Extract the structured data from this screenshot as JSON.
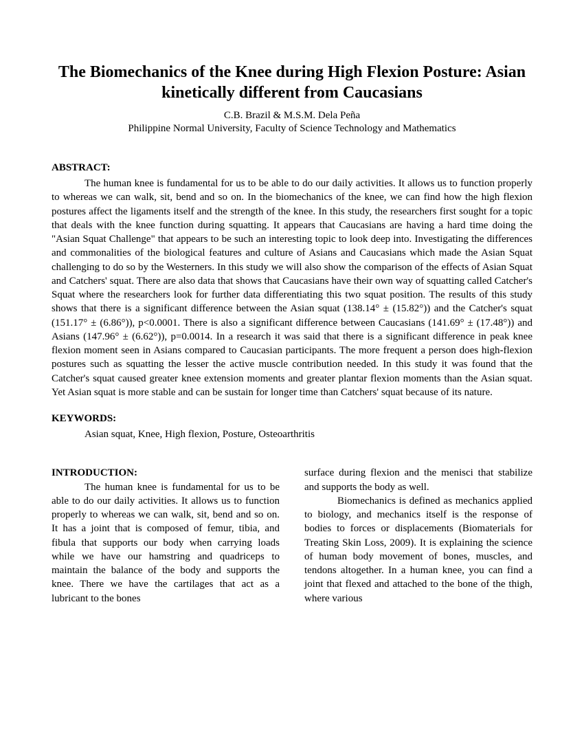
{
  "title_line1": "The Biomechanics of the Knee during High Flexion Posture: Asian",
  "title_line2": "kinetically different from Caucasians",
  "authors": "C.B. Brazil & M.S.M. Dela Peña",
  "affiliation": "Philippine Normal University, Faculty of Science Technology and Mathematics",
  "abstract_heading": "ABSTRACT:",
  "abstract_text": "The human knee is fundamental for us to be able to do our daily activities. It allows us to function properly to whereas we can walk, sit, bend and so on. In the biomechanics of the knee, we can find how the high flexion postures affect the ligaments itself and the strength of the knee. In this study, the researchers first sought for a topic that deals with the knee function during squatting. It appears that Caucasians are having a hard time doing the \"Asian Squat Challenge\" that appears to be such an interesting topic to look deep into. Investigating the differences and commonalities of the biological features and culture of Asians and Caucasians which made the Asian Squat challenging to do so by the Westerners. In this study we will also show the comparison of the effects of Asian Squat and Catchers' squat. There are also data that shows that Caucasians have their own way of squatting called Catcher's Squat where the researchers look for further data differentiating this two squat position. The results of this study shows that there is a significant difference between the Asian squat (138.14° ± (15.82°))  and the Catcher's squat (151.17° ± (6.86°)), p<0.0001. There is also a significant difference between Caucasians (141.69° ± (17.48°)) and Asians (147.96° ± (6.62°)), p=0.0014.  In a research it was said that there is a significant difference in peak knee flexion moment seen in Asians compared to Caucasian participants. The more frequent a person does high-flexion postures such as squatting the lesser the active muscle contribution needed. In this study it was found that the Catcher's squat caused greater knee extension moments and greater plantar flexion moments than the Asian squat. Yet Asian squat is more stable and can be sustain for longer time than Catchers' squat because of its nature.",
  "keywords_heading": "KEYWORDS:",
  "keywords_text": "Asian squat, Knee, High flexion, Posture, Osteoarthritis",
  "intro_heading": "INTRODUCTION:",
  "col1_text": "The human knee is fundamental for us to be able to do our daily activities. It allows us to function properly to whereas we can walk, sit, bend and so on. It has a joint that is composed of femur, tibia, and fibula that supports our body when carrying loads while we have our hamstring and quadriceps to maintain the balance of the body and supports the knee. There we have the cartilages that act as a lubricant to the bones",
  "col2_p1": "surface during flexion and the menisci that stabilize and supports the body as well.",
  "col2_p2": "Biomechanics is defined as mechanics applied to biology, and mechanics itself is the response of bodies to forces or displacements (Biomaterials for Treating Skin Loss, 2009). It is explaining the science of human body movement of bones, muscles, and tendons altogether. In a human knee, you can find a joint that flexed and attached to the bone of the thigh, where various",
  "colors": {
    "text": "#000000",
    "background": "#ffffff"
  },
  "fonts": {
    "family": "Times New Roman",
    "title_size_pt": 18,
    "body_size_pt": 11
  }
}
